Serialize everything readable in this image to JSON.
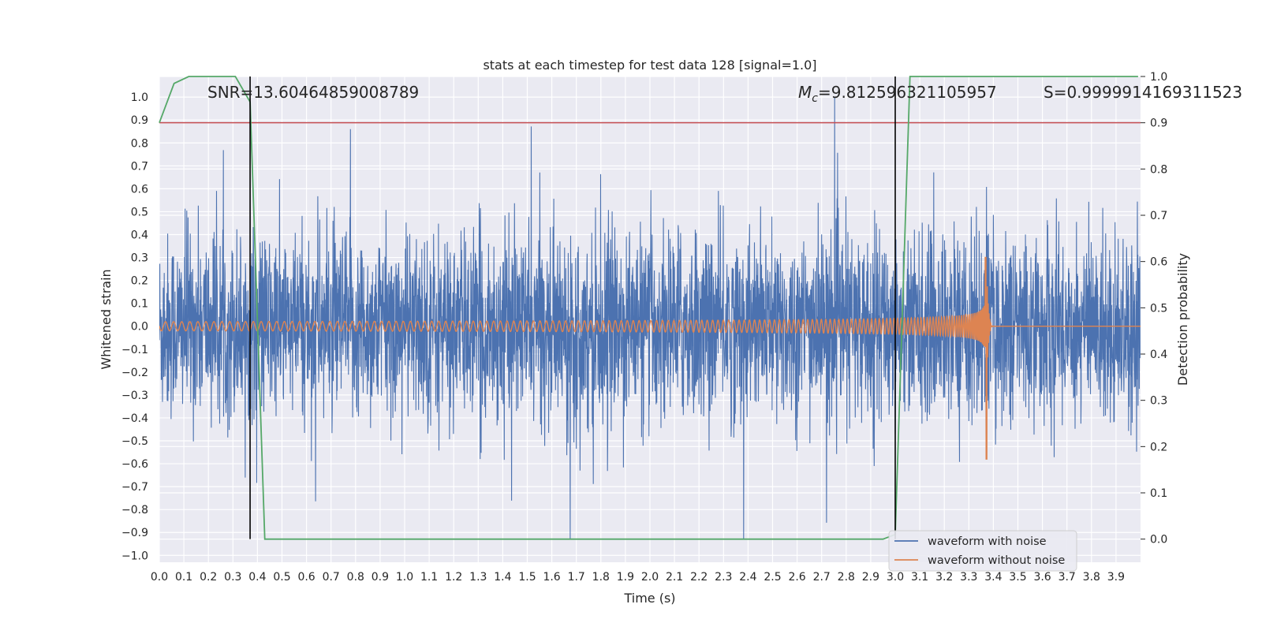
{
  "chart_data": {
    "type": "line",
    "title": "stats at each timestep for test data 128 [signal=1.0]",
    "xlabel": "Time (s)",
    "ylabel": "Whitened strain",
    "y2label": "Detection probability",
    "xlim": [
      0.0,
      4.0
    ],
    "ylim": [
      -1.03,
      1.09
    ],
    "y2lim": [
      -0.05,
      1.0
    ],
    "grid": true,
    "x_ticks": [
      "0.0",
      "0.1",
      "0.2",
      "0.3",
      "0.4",
      "0.5",
      "0.6",
      "0.7",
      "0.8",
      "0.9",
      "1.0",
      "1.1",
      "1.2",
      "1.3",
      "1.4",
      "1.5",
      "1.6",
      "1.7",
      "1.8",
      "1.9",
      "2.0",
      "2.1",
      "2.2",
      "2.3",
      "2.4",
      "2.5",
      "2.6",
      "2.7",
      "2.8",
      "2.9",
      "3.0",
      "3.1",
      "3.2",
      "3.3",
      "3.4",
      "3.5",
      "3.6",
      "3.7",
      "3.8",
      "3.9"
    ],
    "y_ticks": [
      "1.0",
      "0.9",
      "0.8",
      "0.7",
      "0.6",
      "0.5",
      "0.4",
      "0.3",
      "0.2",
      "0.1",
      "0.0",
      "−0.1",
      "−0.2",
      "−0.3",
      "−0.4",
      "−0.5",
      "−0.6",
      "−0.7",
      "−0.8",
      "−0.9",
      "−1.0"
    ],
    "y2_ticks": [
      "1.0",
      "0.9",
      "0.8",
      "0.7",
      "0.6",
      "0.5",
      "0.4",
      "0.3",
      "0.2",
      "0.1",
      "0.0"
    ],
    "annotations": {
      "snr": "SNR=13.60464859008789",
      "mc_symbol": "M",
      "mc_sub": "c",
      "mc_value": "=9.812596321105957",
      "s": "S=0.9999914169311523"
    },
    "threshold": {
      "axis": "y2",
      "value": 0.9,
      "color": "#c44e52"
    },
    "vertical_markers": [
      0.37,
      3.0
    ],
    "series": [
      {
        "name": "waveform with noise",
        "color": "#4c72b0",
        "axis": "y",
        "description_values": {
          "typical_amplitude": 0.45,
          "max": 1.0,
          "min": -0.93
        }
      },
      {
        "name": "waveform without noise",
        "color": "#dd8452",
        "axis": "y",
        "description_values": {
          "merger_time": 3.37,
          "peak_max": 0.33,
          "peak_min": -0.58,
          "start_amplitude": 0.025
        }
      },
      {
        "name": "detection probability",
        "color": "#55a868",
        "axis": "y2",
        "points": [
          [
            0.0,
            0.9
          ],
          [
            0.06,
            0.985
          ],
          [
            0.12,
            1.0
          ],
          [
            0.31,
            1.0
          ],
          [
            0.37,
            0.945
          ],
          [
            0.43,
            0.0
          ],
          [
            0.5,
            0.0
          ],
          [
            2.95,
            0.0
          ],
          [
            3.0,
            0.01
          ],
          [
            3.06,
            1.0
          ],
          [
            3.99,
            1.0
          ]
        ]
      }
    ],
    "legend": {
      "placement": "bottom-right",
      "entries": [
        "waveform with noise",
        "waveform without noise"
      ]
    }
  }
}
